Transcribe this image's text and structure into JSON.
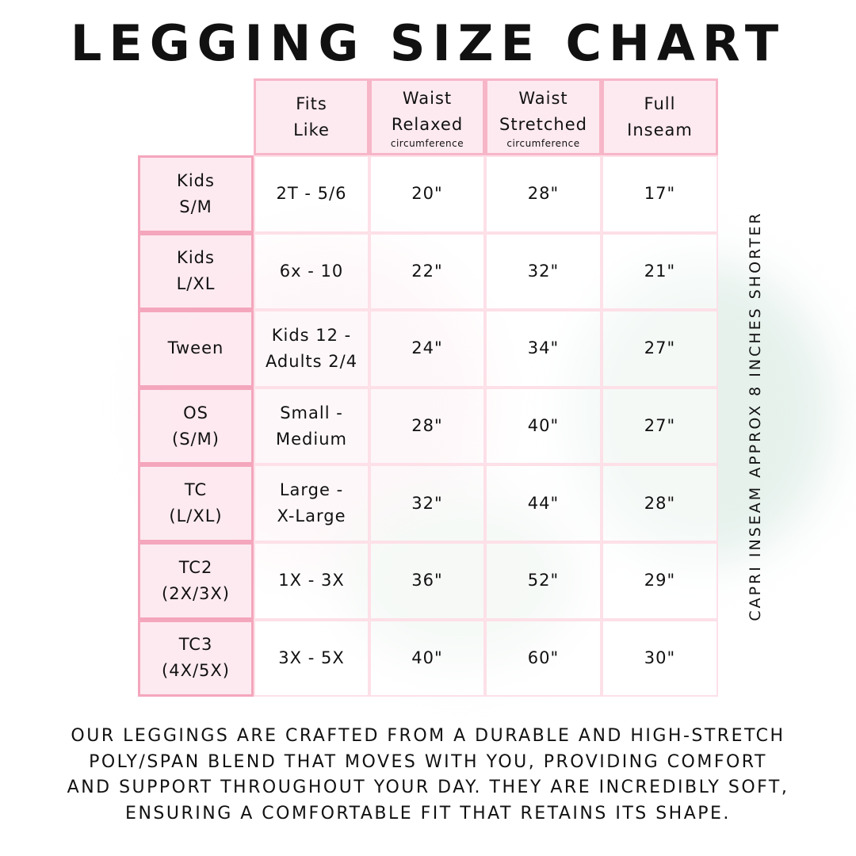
{
  "title": "LEGGING SIZE CHART",
  "table": {
    "headers": [
      {
        "line1": "Fits",
        "line2": "Like",
        "sub": ""
      },
      {
        "line1": "Waist",
        "line2": "Relaxed",
        "sub": "circumference"
      },
      {
        "line1": "Waist",
        "line2": "Stretched",
        "sub": "circumference"
      },
      {
        "line1": "Full",
        "line2": "Inseam",
        "sub": ""
      }
    ],
    "rows": [
      {
        "size1": "Kids",
        "size2": "S/M",
        "fits1": "2T - 5/6",
        "fits2": "",
        "relaxed": "20\"",
        "stretched": "28\"",
        "inseam": "17\""
      },
      {
        "size1": "Kids",
        "size2": "L/XL",
        "fits1": "6x - 10",
        "fits2": "",
        "relaxed": "22\"",
        "stretched": "32\"",
        "inseam": "21\""
      },
      {
        "size1": "Tween",
        "size2": "",
        "fits1": "Kids 12 -",
        "fits2": "Adults 2/4",
        "relaxed": "24\"",
        "stretched": "34\"",
        "inseam": "27\""
      },
      {
        "size1": "OS",
        "size2": "(S/M)",
        "fits1": "Small -",
        "fits2": "Medium",
        "relaxed": "28\"",
        "stretched": "40\"",
        "inseam": "27\""
      },
      {
        "size1": "TC",
        "size2": "(L/XL)",
        "fits1": "Large -",
        "fits2": "X-Large",
        "relaxed": "32\"",
        "stretched": "44\"",
        "inseam": "28\""
      },
      {
        "size1": "TC2",
        "size2": "(2X/3X)",
        "fits1": "1X - 3X",
        "fits2": "",
        "relaxed": "36\"",
        "stretched": "52\"",
        "inseam": "29\""
      },
      {
        "size1": "TC3",
        "size2": "(4X/5X)",
        "fits1": "3X - 5X",
        "fits2": "",
        "relaxed": "40\"",
        "stretched": "60\"",
        "inseam": "30\""
      }
    ]
  },
  "side_note": "CAPRI INSEAM APPROX 8 INCHES SHORTER",
  "description": [
    "Our leggings are crafted from a durable and high-stretch",
    "poly/span blend that moves with you, providing comfort",
    "and support throughout your day. They are incredibly soft,",
    "ensuring a comfortable fit that retains its shape."
  ],
  "colors": {
    "border": "#f7b6c8",
    "header_fill": "#fde8ee"
  }
}
